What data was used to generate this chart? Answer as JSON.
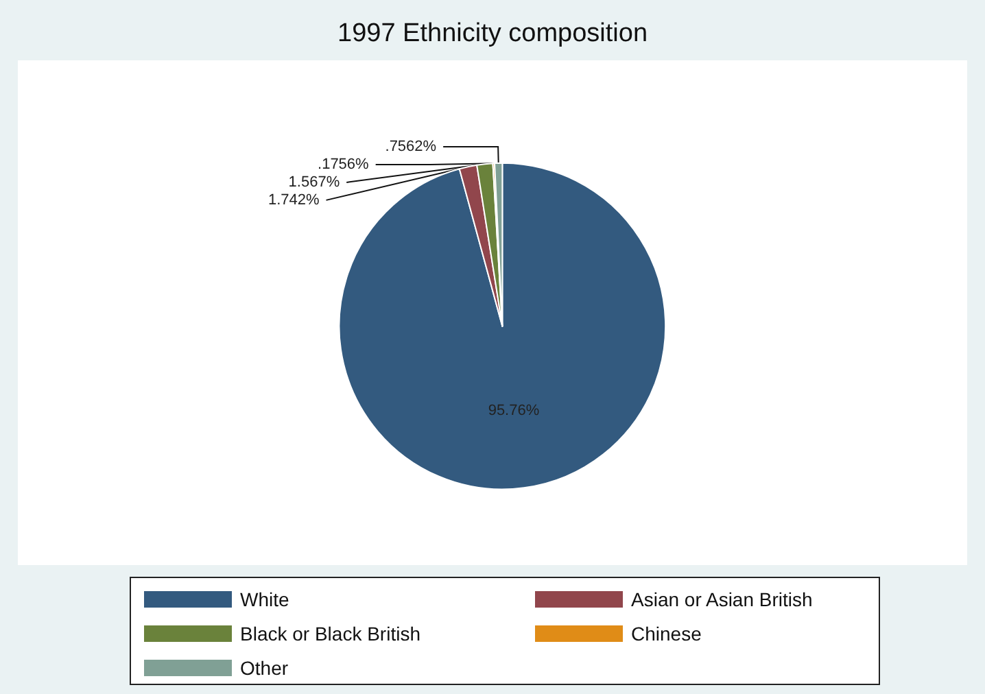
{
  "chart_data": {
    "type": "pie",
    "title": "1997 Ethnicity composition",
    "categories": [
      "White",
      "Asian or Asian British",
      "Black or Black British",
      "Chinese",
      "Other"
    ],
    "values": [
      95.76,
      1.742,
      1.567,
      0.1756,
      0.7562
    ],
    "colors": [
      "#335a7f",
      "#91464c",
      "#6a823b",
      "#e08c17",
      "#80a095"
    ],
    "value_labels": [
      "95.76%",
      "1.742%",
      "1.567%",
      ".1756%",
      ".7562%"
    ],
    "legend": "bottom"
  }
}
